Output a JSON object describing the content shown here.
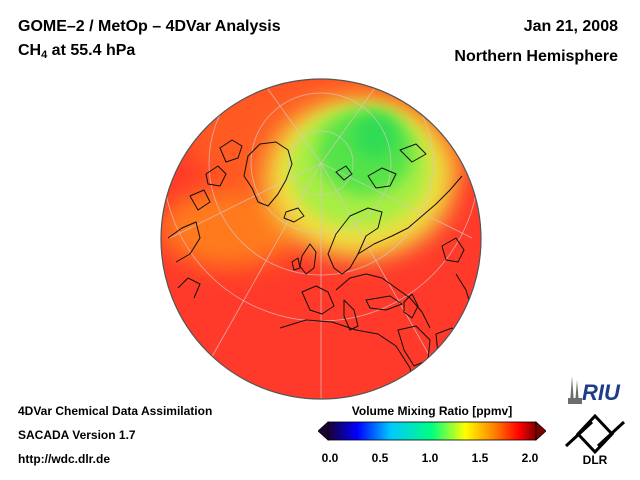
{
  "header": {
    "title_line1": "GOME–2 / MetOp – 4DVar Analysis",
    "species_prefix": "CH",
    "species_subscript": "4",
    "species_suffix": " at 55.4 hPa",
    "date": "Jan 21, 2008",
    "region": "Northern Hemisphere"
  },
  "footer": {
    "line1": "4DVar Chemical Data Assimilation",
    "line2": "SACADA Version 1.7",
    "line3": "http://wdc.dlr.de"
  },
  "colorbar": {
    "title": "Volume Mixing Ratio [ppmv]",
    "min": 0.0,
    "max": 2.0,
    "ticks": [
      "0.0",
      "0.5",
      "1.0",
      "1.5",
      "2.0"
    ],
    "colors": [
      "#1a0033",
      "#0000ff",
      "#00c8ff",
      "#00ff80",
      "#ffff00",
      "#ff8000",
      "#ff0000",
      "#800000"
    ]
  },
  "map_data": {
    "projection": "orthographic",
    "center": "North Pole",
    "background_level_ppmv": 1.75,
    "minimum_region": "Arctic / Barents Sea",
    "minimum_level_ppmv": 1.1
  },
  "logos": {
    "riu": "RIU",
    "dlr": "DLR"
  }
}
